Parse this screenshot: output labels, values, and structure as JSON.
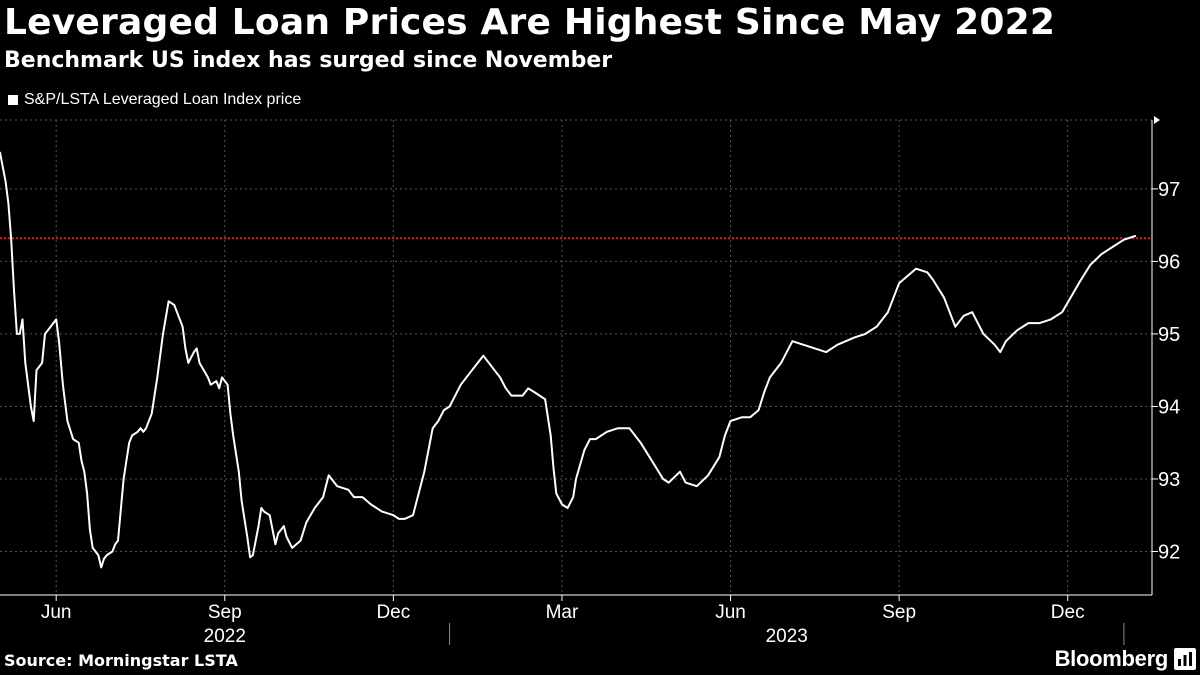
{
  "header": {
    "title": "Leveraged Loan Prices Are Highest Since May 2022",
    "subtitle": "Benchmark US index has surged since November"
  },
  "legend": {
    "label": "S&P/LSTA Leveraged Loan Index price"
  },
  "footer": {
    "source": "Source: Morningstar LSTA",
    "brand": "Bloomberg"
  },
  "colors": {
    "background": "#000000",
    "line": "#ffffff",
    "reference_line": "#e0182d",
    "grid": "#555555"
  },
  "chart_data": {
    "type": "line",
    "title": "Leveraged Loan Prices Are Highest Since May 2022",
    "subtitle": "Benchmark US index has surged since November",
    "xlabel": "",
    "ylabel": "",
    "x_unit": "months since 2022-05-01",
    "xlim": [
      0,
      20.5
    ],
    "ylim": [
      91.4,
      97.95
    ],
    "yticks": [
      92,
      93,
      94,
      95,
      96,
      97
    ],
    "xticks": [
      {
        "x": 1,
        "label": "Jun"
      },
      {
        "x": 4,
        "label": "Sep"
      },
      {
        "x": 7,
        "label": "Dec"
      },
      {
        "x": 10,
        "label": "Mar"
      },
      {
        "x": 13,
        "label": "Jun"
      },
      {
        "x": 16,
        "label": "Sep"
      },
      {
        "x": 19,
        "label": "Dec"
      }
    ],
    "year_labels": [
      {
        "x": 4,
        "label": "2022"
      },
      {
        "x": 14,
        "label": "2023"
      }
    ],
    "year_separators": [
      8,
      20
    ],
    "reference_line": {
      "y": 96.32,
      "style": "dotted",
      "color": "#e0182d"
    },
    "series": [
      {
        "name": "S&P/LSTA Leveraged Loan Index price",
        "x": [
          0,
          0.05,
          0.1,
          0.15,
          0.2,
          0.25,
          0.3,
          0.35,
          0.4,
          0.45,
          0.55,
          0.6,
          0.65,
          0.75,
          0.8,
          0.9,
          1.0,
          1.05,
          1.12,
          1.2,
          1.3,
          1.4,
          1.45,
          1.5,
          1.55,
          1.6,
          1.65,
          1.75,
          1.8,
          1.85,
          1.9,
          2.0,
          2.05,
          2.1,
          2.2,
          2.3,
          2.35,
          2.45,
          2.5,
          2.55,
          2.6,
          2.7,
          2.8,
          2.9,
          3.0,
          3.1,
          3.15,
          3.25,
          3.3,
          3.35,
          3.45,
          3.5,
          3.55,
          3.7,
          3.75,
          3.85,
          3.9,
          3.95,
          4.05,
          4.1,
          4.15,
          4.25,
          4.3,
          4.4,
          4.45,
          4.5,
          4.6,
          4.65,
          4.7,
          4.8,
          4.9,
          4.95,
          5.05,
          5.1,
          5.2,
          5.35,
          5.45,
          5.6,
          5.75,
          5.85,
          6.0,
          6.2,
          6.3,
          6.45,
          6.6,
          6.8,
          7.0,
          7.1,
          7.2,
          7.35,
          7.55,
          7.7,
          7.8,
          7.9,
          8.0,
          8.2,
          8.4,
          8.6,
          8.8,
          8.9,
          9.0,
          9.1,
          9.3,
          9.4,
          9.5,
          9.7,
          9.8,
          9.85,
          9.9,
          10.0,
          10.1,
          10.2,
          10.25,
          10.4,
          10.5,
          10.6,
          10.8,
          11.0,
          11.2,
          11.4,
          11.6,
          11.8,
          11.9,
          12.1,
          12.2,
          12.4,
          12.6,
          12.8,
          12.9,
          13.0,
          13.2,
          13.35,
          13.5,
          13.6,
          13.7,
          13.9,
          14.1,
          14.3,
          14.5,
          14.7,
          14.9,
          15.2,
          15.4,
          15.6,
          15.8,
          15.9,
          16.0,
          16.15,
          16.3,
          16.5,
          16.6,
          16.8,
          17.0,
          17.15,
          17.3,
          17.5,
          17.7,
          17.8,
          17.9,
          18.1,
          18.3,
          18.5,
          18.7,
          18.9,
          19.05,
          19.2,
          19.4,
          19.6,
          19.8,
          20.0,
          20.2
        ],
        "values": [
          97.5,
          97.3,
          97.1,
          96.8,
          96.3,
          95.6,
          95.0,
          95.0,
          95.2,
          94.6,
          94.0,
          93.8,
          94.5,
          94.6,
          95.0,
          95.1,
          95.2,
          94.9,
          94.3,
          93.8,
          93.55,
          93.5,
          93.25,
          93.1,
          92.8,
          92.3,
          92.05,
          91.95,
          91.78,
          91.9,
          91.95,
          92.0,
          92.1,
          92.15,
          93.0,
          93.5,
          93.6,
          93.65,
          93.7,
          93.65,
          93.7,
          93.9,
          94.4,
          95.0,
          95.45,
          95.4,
          95.3,
          95.1,
          94.8,
          94.6,
          94.75,
          94.8,
          94.6,
          94.4,
          94.3,
          94.35,
          94.25,
          94.4,
          94.3,
          93.9,
          93.6,
          93.1,
          92.7,
          92.2,
          91.92,
          91.95,
          92.35,
          92.6,
          92.55,
          92.5,
          92.1,
          92.25,
          92.35,
          92.2,
          92.05,
          92.15,
          92.4,
          92.6,
          92.75,
          93.05,
          92.9,
          92.85,
          92.75,
          92.75,
          92.65,
          92.55,
          92.5,
          92.45,
          92.45,
          92.5,
          93.1,
          93.7,
          93.8,
          93.95,
          94.0,
          94.3,
          94.5,
          94.7,
          94.5,
          94.4,
          94.25,
          94.15,
          94.15,
          94.25,
          94.2,
          94.1,
          93.6,
          93.15,
          92.8,
          92.65,
          92.6,
          92.75,
          93.0,
          93.4,
          93.55,
          93.55,
          93.65,
          93.7,
          93.7,
          93.5,
          93.25,
          93.0,
          92.95,
          93.1,
          92.95,
          92.9,
          93.05,
          93.3,
          93.6,
          93.8,
          93.85,
          93.85,
          93.95,
          94.2,
          94.4,
          94.6,
          94.9,
          94.85,
          94.8,
          94.75,
          94.85,
          94.95,
          95.0,
          95.1,
          95.3,
          95.5,
          95.7,
          95.8,
          95.9,
          95.85,
          95.75,
          95.5,
          95.1,
          95.25,
          95.3,
          95.0,
          94.85,
          94.75,
          94.9,
          95.05,
          95.15,
          95.15,
          95.2,
          95.3,
          95.5,
          95.7,
          95.95,
          96.1,
          96.2,
          96.3,
          96.35
        ]
      }
    ]
  }
}
